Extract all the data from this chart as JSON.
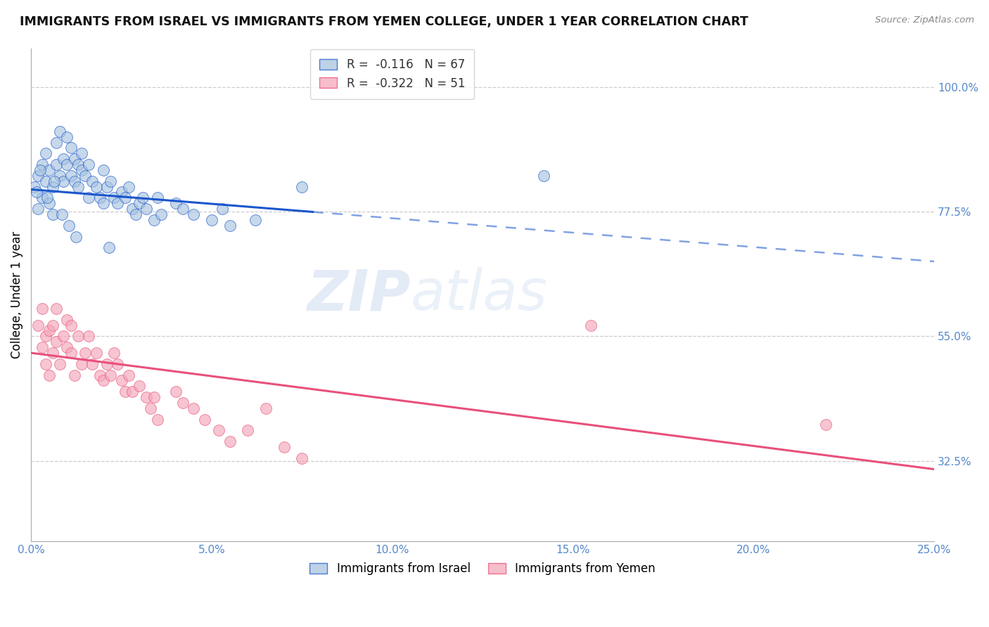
{
  "title": "IMMIGRANTS FROM ISRAEL VS IMMIGRANTS FROM YEMEN COLLEGE, UNDER 1 YEAR CORRELATION CHART",
  "source": "Source: ZipAtlas.com",
  "ylabel": "College, Under 1 year",
  "watermark": "ZIPatlas",
  "xlim": [
    0.0,
    25.0
  ],
  "ylim": [
    18.0,
    107.0
  ],
  "x_ticks": [
    0.0,
    5.0,
    10.0,
    15.0,
    20.0,
    25.0
  ],
  "y_ticks_right": [
    32.5,
    55.0,
    77.5,
    100.0
  ],
  "israel_R": -0.116,
  "israel_N": 67,
  "yemen_R": -0.322,
  "yemen_N": 51,
  "israel_color": "#a8c4e0",
  "yemen_color": "#f4a7b9",
  "israel_line_color": "#1a56cc",
  "yemen_line_color": "#e8507a",
  "israel_line_b0": 81.5,
  "israel_line_b1": -0.52,
  "yemen_line_b0": 52.0,
  "yemen_line_b1": -0.84,
  "israel_solid_end": 7.8,
  "israel_x": [
    0.1,
    0.2,
    0.2,
    0.3,
    0.3,
    0.4,
    0.4,
    0.5,
    0.5,
    0.6,
    0.6,
    0.7,
    0.7,
    0.8,
    0.8,
    0.9,
    0.9,
    1.0,
    1.0,
    1.1,
    1.1,
    1.2,
    1.2,
    1.3,
    1.3,
    1.4,
    1.4,
    1.5,
    1.6,
    1.6,
    1.7,
    1.8,
    1.9,
    2.0,
    2.0,
    2.1,
    2.2,
    2.3,
    2.4,
    2.5,
    2.6,
    2.7,
    2.8,
    2.9,
    3.0,
    3.1,
    3.2,
    3.4,
    3.5,
    3.6,
    4.0,
    4.2,
    4.5,
    5.0,
    5.3,
    5.5,
    6.2,
    7.5,
    0.15,
    0.25,
    0.45,
    0.65,
    0.85,
    1.05,
    1.25,
    2.15,
    14.2
  ],
  "israel_y": [
    82.0,
    78.0,
    84.0,
    86.0,
    80.0,
    83.0,
    88.0,
    79.0,
    85.0,
    82.0,
    77.0,
    86.0,
    90.0,
    84.0,
    92.0,
    83.0,
    87.0,
    86.0,
    91.0,
    84.0,
    89.0,
    83.0,
    87.0,
    86.0,
    82.0,
    85.0,
    88.0,
    84.0,
    86.0,
    80.0,
    83.0,
    82.0,
    80.0,
    85.0,
    79.0,
    82.0,
    83.0,
    80.0,
    79.0,
    81.0,
    80.0,
    82.0,
    78.0,
    77.0,
    79.0,
    80.0,
    78.0,
    76.0,
    80.0,
    77.0,
    79.0,
    78.0,
    77.0,
    76.0,
    78.0,
    75.0,
    76.0,
    82.0,
    81.0,
    85.0,
    80.0,
    83.0,
    77.0,
    75.0,
    73.0,
    71.0,
    84.0
  ],
  "yemen_x": [
    0.2,
    0.3,
    0.3,
    0.4,
    0.4,
    0.5,
    0.5,
    0.6,
    0.6,
    0.7,
    0.7,
    0.8,
    0.9,
    1.0,
    1.0,
    1.1,
    1.1,
    1.2,
    1.3,
    1.4,
    1.5,
    1.6,
    1.7,
    1.8,
    1.9,
    2.0,
    2.1,
    2.2,
    2.3,
    2.4,
    2.5,
    2.6,
    2.7,
    2.8,
    3.0,
    3.2,
    3.3,
    3.4,
    3.5,
    4.0,
    4.2,
    4.5,
    4.8,
    5.2,
    5.5,
    6.0,
    6.5,
    7.0,
    7.5,
    15.5,
    22.0
  ],
  "yemen_y": [
    57.0,
    53.0,
    60.0,
    55.0,
    50.0,
    56.0,
    48.0,
    52.0,
    57.0,
    54.0,
    60.0,
    50.0,
    55.0,
    53.0,
    58.0,
    52.0,
    57.0,
    48.0,
    55.0,
    50.0,
    52.0,
    55.0,
    50.0,
    52.0,
    48.0,
    47.0,
    50.0,
    48.0,
    52.0,
    50.0,
    47.0,
    45.0,
    48.0,
    45.0,
    46.0,
    44.0,
    42.0,
    44.0,
    40.0,
    45.0,
    43.0,
    42.0,
    40.0,
    38.0,
    36.0,
    38.0,
    42.0,
    35.0,
    33.0,
    57.0,
    39.0
  ]
}
